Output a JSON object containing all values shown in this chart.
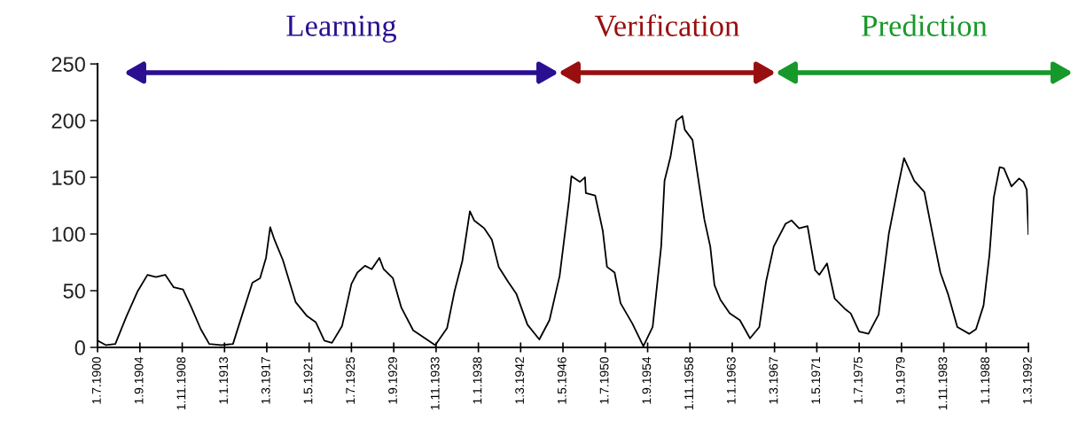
{
  "chart_data": {
    "type": "line",
    "x": [
      "1900-07",
      "1901-05",
      "1902-04",
      "1903-05",
      "1904-06",
      "1905-06",
      "1906-04",
      "1907-03",
      "1908-01",
      "1908-12",
      "1909-10",
      "1910-09",
      "1911-07",
      "1912-09",
      "1913-11",
      "1914-10",
      "1915-10",
      "1916-07",
      "1917-02",
      "1917-07",
      "1917-12",
      "1918-10",
      "1920-01",
      "1921-02",
      "1922-01",
      "1922-11",
      "1923-08",
      "1924-08",
      "1925-07",
      "1926-02",
      "1926-11",
      "1927-07",
      "1928-04",
      "1928-09",
      "1929-08",
      "1930-06",
      "1931-08",
      "1932-10",
      "1933-10",
      "1934-12",
      "1935-09",
      "1936-06",
      "1937-03",
      "1937-08",
      "1938-08",
      "1939-05",
      "1940-01",
      "1940-12",
      "1941-10",
      "1942-11",
      "1944-01",
      "1945-01",
      "1946-01",
      "1946-12",
      "1947-03",
      "1948-01",
      "1948-07",
      "1948-08",
      "1949-07",
      "1950-04",
      "1950-09",
      "1951-06",
      "1952-01",
      "1953-03",
      "1954-04",
      "1955-03",
      "1956-01",
      "1956-05",
      "1956-12",
      "1957-07",
      "1958-02",
      "1958-05",
      "1959-02",
      "1959-07",
      "1960-04",
      "1960-11",
      "1961-04",
      "1961-11",
      "1962-10",
      "1963-10",
      "1964-10",
      "1965-09",
      "1966-05",
      "1967-02",
      "1968-04",
      "1968-11",
      "1969-08",
      "1970-06",
      "1971-03",
      "1971-08",
      "1972-05",
      "1973-02",
      "1974-02",
      "1974-09",
      "1975-07",
      "1976-06",
      "1977-06",
      "1978-06",
      "1979-05",
      "1979-12",
      "1980-12",
      "1981-12",
      "1982-11",
      "1983-07",
      "1984-04",
      "1985-03",
      "1986-05",
      "1987-01",
      "1987-10",
      "1988-05",
      "1988-10",
      "1989-05",
      "1989-10",
      "1990-07",
      "1991-04",
      "1991-09",
      "1992-01",
      "1992-03"
    ],
    "series": [
      {
        "color": "#000000",
        "values": [
          6,
          2,
          3,
          27,
          49,
          64,
          62,
          64,
          53,
          51,
          35,
          16,
          3,
          2,
          3,
          29,
          57,
          61,
          79,
          106,
          95,
          77,
          40,
          28,
          22,
          6,
          4,
          19,
          56,
          66,
          72,
          69,
          79,
          69,
          61,
          35,
          15,
          8,
          2,
          17,
          50,
          76,
          120,
          112,
          105,
          95,
          71,
          58,
          47,
          20,
          7,
          24,
          63,
          129,
          151,
          146,
          150,
          136,
          134,
          103,
          71,
          66,
          39,
          21,
          1,
          18,
          89,
          147,
          168,
          200,
          204,
          192,
          183,
          158,
          113,
          89,
          55,
          42,
          30,
          24,
          8,
          18,
          58,
          89,
          109,
          112,
          105,
          107,
          68,
          64,
          74,
          43,
          34,
          30,
          14,
          12,
          29,
          100,
          142,
          167,
          147,
          137,
          95,
          66,
          47,
          18,
          12,
          16,
          37,
          82,
          132,
          159,
          158,
          142,
          149,
          146,
          139,
          100
        ]
      }
    ],
    "xlim": [
      "1900-07",
      "1992-03"
    ],
    "xticks": [
      {
        "value": "1900-07",
        "label": "1.7.1900"
      },
      {
        "value": "1904-09",
        "label": "1.9.1904"
      },
      {
        "value": "1908-11",
        "label": "1.11.1908"
      },
      {
        "value": "1913-01",
        "label": "1.1.1913"
      },
      {
        "value": "1917-03",
        "label": "1.3.1917"
      },
      {
        "value": "1921-05",
        "label": "1.5.1921"
      },
      {
        "value": "1925-07",
        "label": "1.7.1925"
      },
      {
        "value": "1929-09",
        "label": "1.9.1929"
      },
      {
        "value": "1933-11",
        "label": "1.11.1933"
      },
      {
        "value": "1938-01",
        "label": "1.1.1938"
      },
      {
        "value": "1942-03",
        "label": "1.3.1942"
      },
      {
        "value": "1946-05",
        "label": "1.5.1946"
      },
      {
        "value": "1950-07",
        "label": "1.7.1950"
      },
      {
        "value": "1954-09",
        "label": "1.9.1954"
      },
      {
        "value": "1958-11",
        "label": "1.11.1958"
      },
      {
        "value": "1963-01",
        "label": "1.1.1963"
      },
      {
        "value": "1967-03",
        "label": "1.3.1967"
      },
      {
        "value": "1971-05",
        "label": "1.5.1971"
      },
      {
        "value": "1975-07",
        "label": "1.7.1975"
      },
      {
        "value": "1979-09",
        "label": "1.9.1979"
      },
      {
        "value": "1983-11",
        "label": "1.11.1983"
      },
      {
        "value": "1988-01",
        "label": "1.1.1988"
      },
      {
        "value": "1992-03",
        "label": "1.3.1992"
      }
    ],
    "ylim": [
      0,
      250
    ],
    "yticks": [
      0,
      50,
      100,
      150,
      200,
      250
    ],
    "grid": false,
    "legend": false,
    "marker": "none",
    "line_style": "solid",
    "annotations": [
      "Learning",
      "Verification",
      "Prediction"
    ]
  }
}
